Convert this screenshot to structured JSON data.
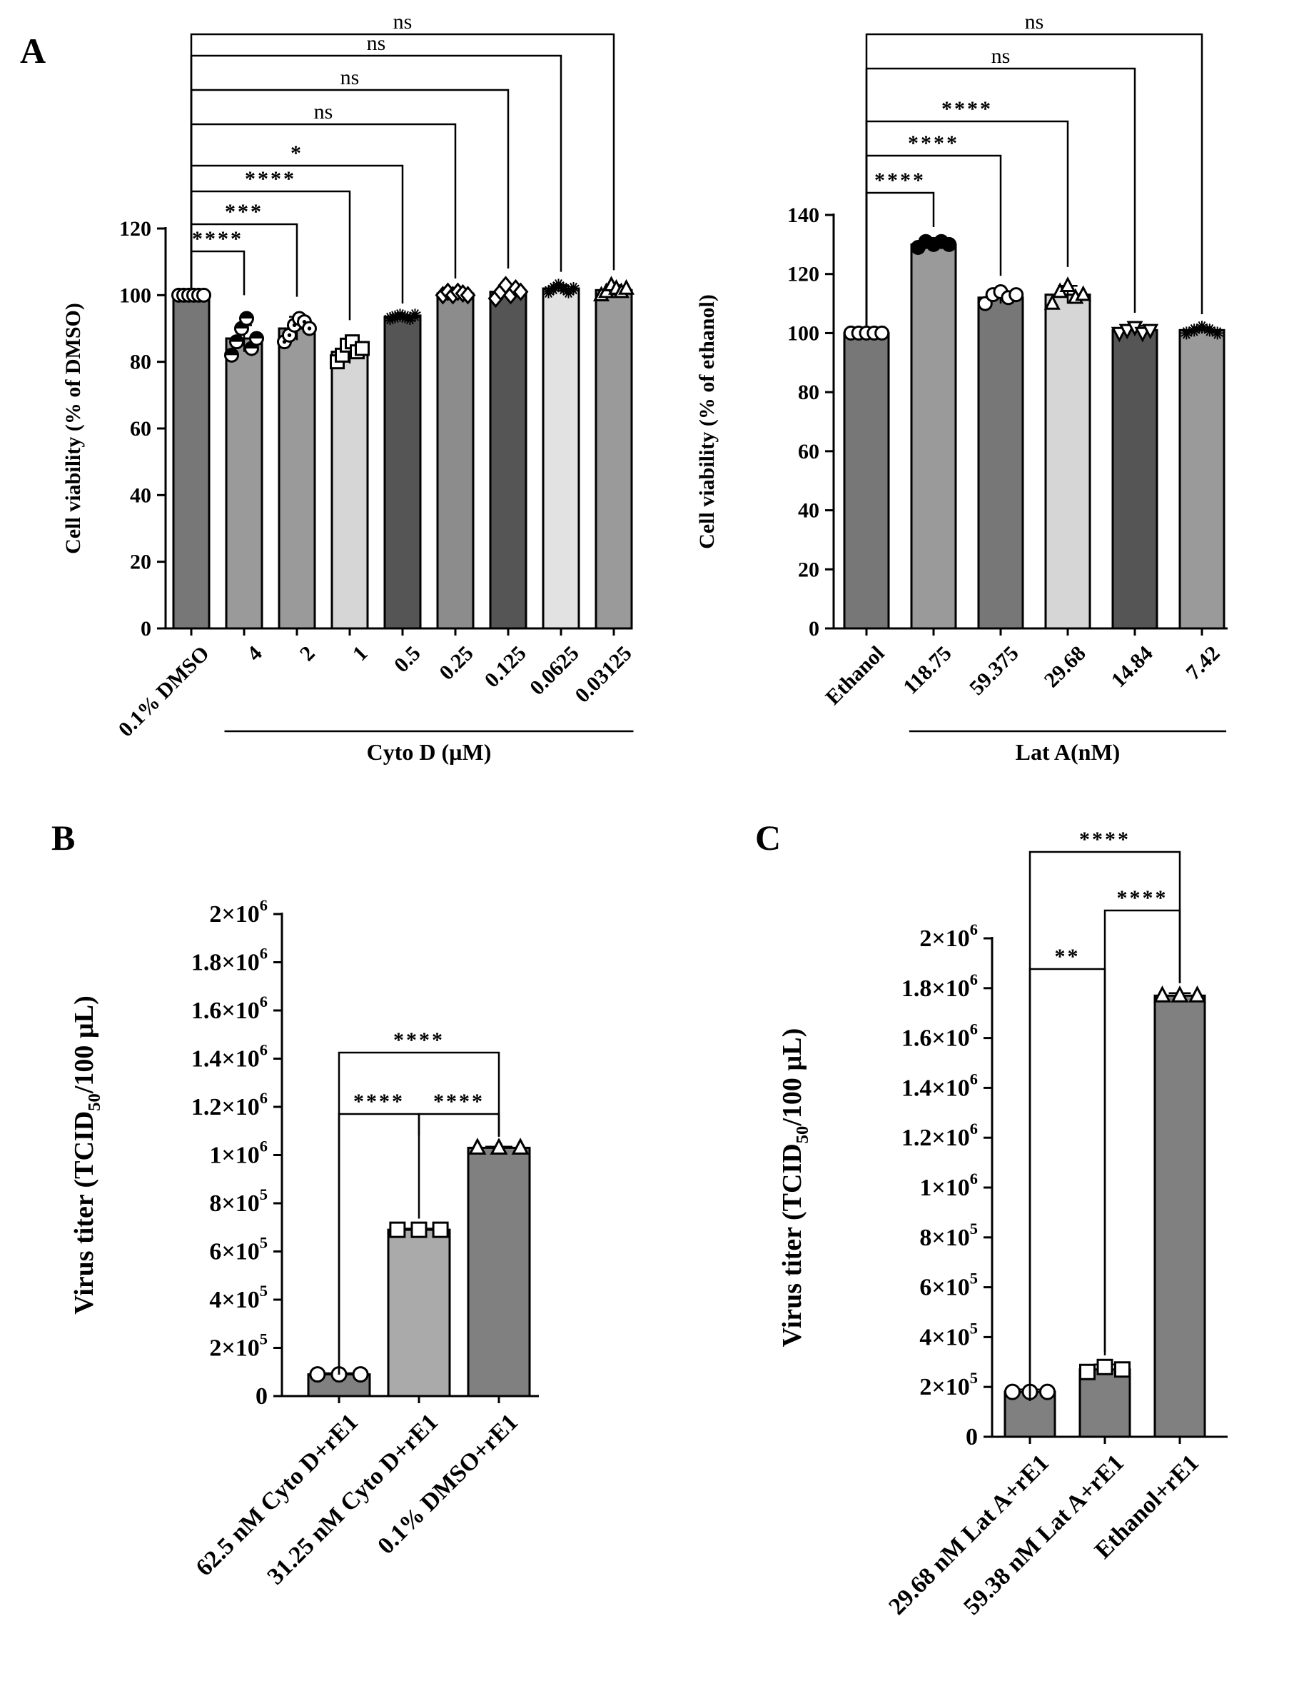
{
  "figure": {
    "panel_labels": [
      "A",
      "B",
      "C"
    ]
  },
  "chart_data": [
    {
      "type": "bar",
      "panel": "A",
      "title": "",
      "ylabel": "Cell viability  (% of DMSO)",
      "xlabel": "Cyto D  (µM)",
      "ylim": [
        0,
        120
      ],
      "yticks": [
        0,
        20,
        40,
        60,
        80,
        100,
        120
      ],
      "ytick_labels": [
        "0",
        "20",
        "40",
        "60",
        "80",
        "100",
        "120"
      ],
      "categories": [
        "0.1% DMSO",
        "4",
        "2",
        "1",
        "0.5",
        "0.25",
        "0.125",
        "0.0625",
        "0.03125"
      ],
      "values": [
        100,
        87,
        90,
        83,
        93.5,
        100.5,
        101,
        102,
        101.5
      ],
      "errors": [
        1,
        4,
        3.5,
        3.5,
        0.5,
        1,
        2,
        1,
        1.5
      ],
      "bar_colors": [
        "#777777",
        "#9a9a9a",
        "#9a9a9a",
        "#d6d6d6",
        "#555555",
        "#8c8c8c",
        "#555555",
        "#e2e2e2",
        "#9a9a9a"
      ],
      "markers": [
        "circle",
        "half",
        "dot-circle",
        "square",
        "star",
        "diamond",
        "diamond",
        "star",
        "triangle"
      ],
      "points": [
        [
          100,
          100,
          100,
          100,
          100,
          100
        ],
        [
          82,
          86,
          90,
          93,
          84,
          87
        ],
        [
          86,
          88,
          91,
          93,
          92,
          90
        ],
        [
          80,
          82,
          85,
          86,
          83,
          84
        ],
        [
          93,
          93.5,
          94,
          93.5,
          93,
          94
        ],
        [
          100,
          101,
          100,
          101,
          100.5,
          100
        ],
        [
          99,
          101,
          103,
          100,
          102,
          101
        ],
        [
          101,
          102,
          103,
          102,
          101,
          102
        ],
        [
          100,
          101,
          103,
          102,
          101,
          102
        ]
      ],
      "group_label_span": [
        1,
        8
      ],
      "comparisons": [
        {
          "from": 0,
          "to": 1,
          "label": "****"
        },
        {
          "from": 0,
          "to": 2,
          "label": "***"
        },
        {
          "from": 0,
          "to": 3,
          "label": "****"
        },
        {
          "from": 0,
          "to": 4,
          "label": "*"
        },
        {
          "from": 0,
          "to": 5,
          "label": "ns"
        },
        {
          "from": 0,
          "to": 6,
          "label": "ns"
        },
        {
          "from": 0,
          "to": 7,
          "label": "ns"
        },
        {
          "from": 0,
          "to": 8,
          "label": "ns"
        }
      ]
    },
    {
      "type": "bar",
      "panel": "A",
      "title": "",
      "ylabel": "Cell viability (% of  ethanol)",
      "xlabel": "Lat A(nM)",
      "ylim": [
        0,
        140
      ],
      "yticks": [
        0,
        20,
        40,
        60,
        80,
        100,
        120,
        140
      ],
      "ytick_labels": [
        "0",
        "20",
        "40",
        "60",
        "80",
        "100",
        "120",
        "140"
      ],
      "categories": [
        "Ethanol",
        "118.75",
        "59.375",
        "29.68",
        "14.84",
        "7.42"
      ],
      "values": [
        100,
        130,
        112,
        113,
        101,
        101
      ],
      "errors": [
        1,
        1.5,
        2,
        3,
        1.5,
        1
      ],
      "bar_colors": [
        "#777777",
        "#9a9a9a",
        "#777777",
        "#d6d6d6",
        "#555555",
        "#9a9a9a"
      ],
      "markers": [
        "circle",
        "filled-circle",
        "circle",
        "triangle",
        "triangle-down",
        "star"
      ],
      "points": [
        [
          100,
          100,
          100,
          100,
          100
        ],
        [
          129,
          131,
          130,
          131,
          130
        ],
        [
          110,
          113,
          114,
          112,
          113
        ],
        [
          110,
          114,
          116,
          112,
          113
        ],
        [
          100,
          101,
          102,
          100,
          101
        ],
        [
          100,
          101,
          102,
          101,
          100
        ]
      ],
      "group_label_span": [
        1,
        5
      ],
      "comparisons": [
        {
          "from": 0,
          "to": 1,
          "label": "****"
        },
        {
          "from": 0,
          "to": 2,
          "label": "****"
        },
        {
          "from": 0,
          "to": 3,
          "label": "****"
        },
        {
          "from": 0,
          "to": 4,
          "label": "ns"
        },
        {
          "from": 0,
          "to": 5,
          "label": "ns"
        }
      ]
    },
    {
      "type": "bar",
      "panel": "B",
      "title": "",
      "ylabel": "Virus titer (TCID",
      "ylabel_sub": "50",
      "ylabel_tail": "/100 µL)",
      "xlabel": "",
      "ylim": [
        0,
        2000000
      ],
      "yticks": [
        0,
        200000,
        400000,
        600000,
        800000,
        1000000,
        1200000,
        1400000,
        1600000,
        1800000,
        2000000
      ],
      "ytick_labels": [
        [
          "0",
          ""
        ],
        [
          "2×10",
          "5"
        ],
        [
          "4×10",
          "5"
        ],
        [
          "6×10",
          "5"
        ],
        [
          "8×10",
          "5"
        ],
        [
          "1×10",
          "6"
        ],
        [
          "1.2×10",
          "6"
        ],
        [
          "1.4×10",
          "6"
        ],
        [
          "1.6×10",
          "6"
        ],
        [
          "1.8×10",
          "6"
        ],
        [
          "2×10",
          "6"
        ]
      ],
      "categories": [
        "62.5 nM Cyto D+rE1",
        "31.25 nM Cyto D+rE1",
        "0.1% DMSO+rE1"
      ],
      "values": [
        90000,
        690000,
        1030000
      ],
      "errors": [
        5000,
        5000,
        5000
      ],
      "bar_colors": [
        "#808080",
        "#aaaaaa",
        "#808080"
      ],
      "markers": [
        "circle",
        "square",
        "triangle"
      ],
      "points": [
        [
          90000,
          90000,
          90000
        ],
        [
          690000,
          690000,
          690000
        ],
        [
          1030000,
          1030000,
          1030000
        ]
      ],
      "comparisons": [
        {
          "from": 0,
          "to": 1,
          "label": "****"
        },
        {
          "from": 1,
          "to": 2,
          "label": "****"
        },
        {
          "from": 0,
          "to": 2,
          "label": "****"
        }
      ]
    },
    {
      "type": "bar",
      "panel": "C",
      "title": "",
      "ylabel": "Virus titer (TCID",
      "ylabel_sub": "50",
      "ylabel_tail": "/100 µL)",
      "xlabel": "",
      "ylim": [
        0,
        2000000
      ],
      "yticks": [
        0,
        200000,
        400000,
        600000,
        800000,
        1000000,
        1200000,
        1400000,
        1600000,
        1800000,
        2000000
      ],
      "ytick_labels": [
        [
          "0",
          ""
        ],
        [
          "2×10",
          "5"
        ],
        [
          "4×10",
          "5"
        ],
        [
          "6×10",
          "5"
        ],
        [
          "8×10",
          "5"
        ],
        [
          "1×10",
          "6"
        ],
        [
          "1.2×10",
          "6"
        ],
        [
          "1.4×10",
          "6"
        ],
        [
          "1.6×10",
          "6"
        ],
        [
          "1.8×10",
          "6"
        ],
        [
          "2×10",
          "6"
        ]
      ],
      "categories": [
        "29.68 nM Lat A+rE1",
        "59.38 nM Lat A+rE1",
        "Ethanol+rE1"
      ],
      "values": [
        180000,
        270000,
        1770000
      ],
      "errors": [
        10000,
        20000,
        10000
      ],
      "bar_colors": [
        "#808080",
        "#808080",
        "#808080"
      ],
      "markers": [
        "circle",
        "square",
        "triangle"
      ],
      "points": [
        [
          180000,
          180000,
          180000
        ],
        [
          260000,
          280000,
          270000
        ],
        [
          1770000,
          1770000,
          1770000
        ]
      ],
      "comparisons": [
        {
          "from": 0,
          "to": 1,
          "label": "**"
        },
        {
          "from": 1,
          "to": 2,
          "label": "****"
        },
        {
          "from": 0,
          "to": 2,
          "label": "****"
        }
      ]
    }
  ]
}
